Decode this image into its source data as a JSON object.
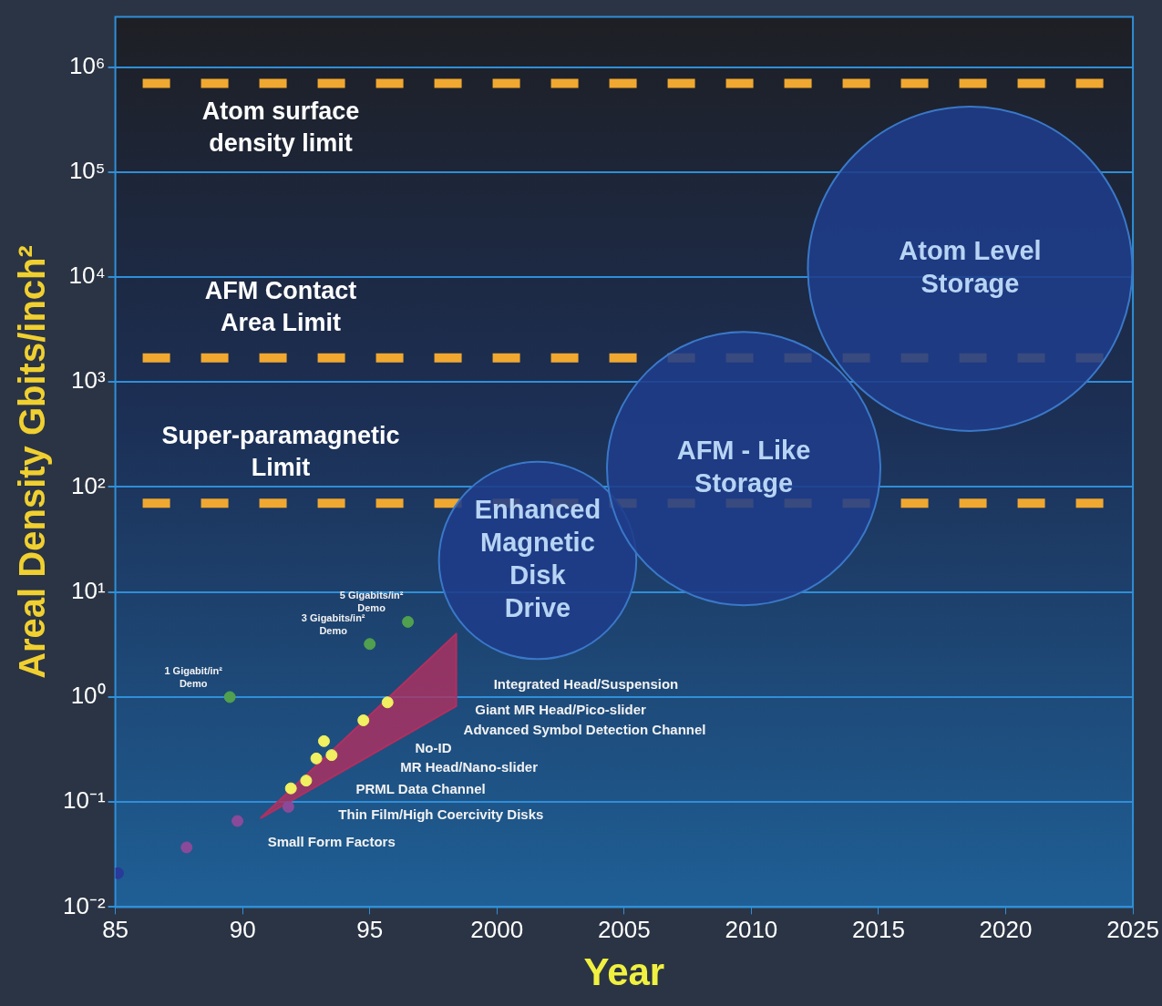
{
  "chart_data": {
    "type": "scatter",
    "xlabel": "Year",
    "ylabel": "Areal Density Gbits/inch²",
    "log": "y",
    "grid": "y",
    "legend": false,
    "marker": "circle",
    "xlim": [
      1985,
      2025
    ],
    "xticks": [
      {
        "value": 1985,
        "label": "85"
      },
      {
        "value": 1990,
        "label": "90"
      },
      {
        "value": 1995,
        "label": "95"
      },
      2000,
      2005,
      2010,
      2015,
      2020,
      2025
    ],
    "ylim": [
      0.01,
      3000000
    ],
    "yticks": [
      {
        "value": 0.01,
        "label": "10⁻²"
      },
      {
        "value": 0.1,
        "label": "10⁻¹"
      },
      {
        "value": 1,
        "label": "10⁰"
      },
      {
        "value": 10,
        "label": "10¹"
      },
      {
        "value": 100,
        "label": "10²"
      },
      {
        "value": 1000,
        "label": "10³"
      },
      {
        "value": 10000,
        "label": "10⁴"
      },
      {
        "value": 100000,
        "label": "10⁵"
      },
      {
        "value": 1000000,
        "label": "10⁶"
      }
    ],
    "series": [
      {
        "type": "area",
        "color": "#b03060",
        "marker": "none",
        "x": [
          1990.7,
          1998.4,
          1998.4,
          1990.7
        ],
        "values": [
          0.07,
          4,
          0.82,
          0.07
        ]
      },
      {
        "color": "#2a3a9a",
        "x": [
          1985.1
        ],
        "values": [
          0.021
        ]
      },
      {
        "color": "#8a4a9a",
        "x": [
          1987.8,
          1989.8,
          1991.8
        ],
        "values": [
          0.037,
          0.066,
          0.09
        ]
      },
      {
        "color": "#50a050",
        "x": [
          1989.5,
          1995.0,
          1996.5
        ],
        "values": [
          1.0,
          3.2,
          5.2
        ]
      },
      {
        "color": "#f0f060",
        "x": [
          1991.9,
          1992.5,
          1992.9,
          1993.2,
          1993.5,
          1994.75,
          1995.7
        ],
        "values": [
          0.135,
          0.16,
          0.26,
          0.38,
          0.28,
          0.6,
          0.89
        ]
      },
      {
        "type": "bubble",
        "color": "#1f3c8a",
        "x": [
          2001.6,
          2009.7,
          2018.6
        ],
        "values": [
          20,
          150,
          12000
        ],
        "sizes": [
          0.37,
          0.71,
          1
        ]
      }
    ],
    "ref_lines": [
      {
        "axis": "y",
        "value": 700000,
        "label": "Atom surface density limit",
        "color": "#f0a830",
        "line_style": "dashed"
      },
      {
        "axis": "y",
        "value": 1700,
        "label": "AFM Contact Area Limit",
        "color": "#f0a830",
        "line_style": "dashed"
      },
      {
        "axis": "y",
        "value": 70,
        "label": "Super-paramagnetic Limit",
        "color": "#f0a830",
        "line_style": "dashed"
      }
    ],
    "annotations": [
      {
        "text": "Enhanced Magnetic Disk Drive",
        "x": 2001.6,
        "y": 20
      },
      {
        "text": "AFM - Like Storage",
        "x": 2009.7,
        "y": 150
      },
      {
        "text": "Atom Level Storage",
        "x": 2018.6,
        "y": 12000
      },
      {
        "text": "1 Gigabit/in² Demo",
        "x": 1989.5,
        "y": 1.0
      },
      {
        "text": "3 Gigabits/in² Demo",
        "x": 1995.0,
        "y": 3.2
      },
      {
        "text": "5 Gigabits/in² Demo",
        "x": 1996.5,
        "y": 5.2
      },
      "Integrated Head/Suspension",
      "Giant MR Head/Pico-slider",
      {
        "text": "Advanced Symbol Detection Channel",
        "x": 1998.4,
        "y": 0.82
      },
      "No-ID",
      "MR Head/Nano-slider",
      "PRML Data Channel",
      "Thin Film/High Coercivity Disks",
      {
        "text": "Small Form Factors",
        "x": 1990.7,
        "y": 0.07
      }
    ]
  }
}
